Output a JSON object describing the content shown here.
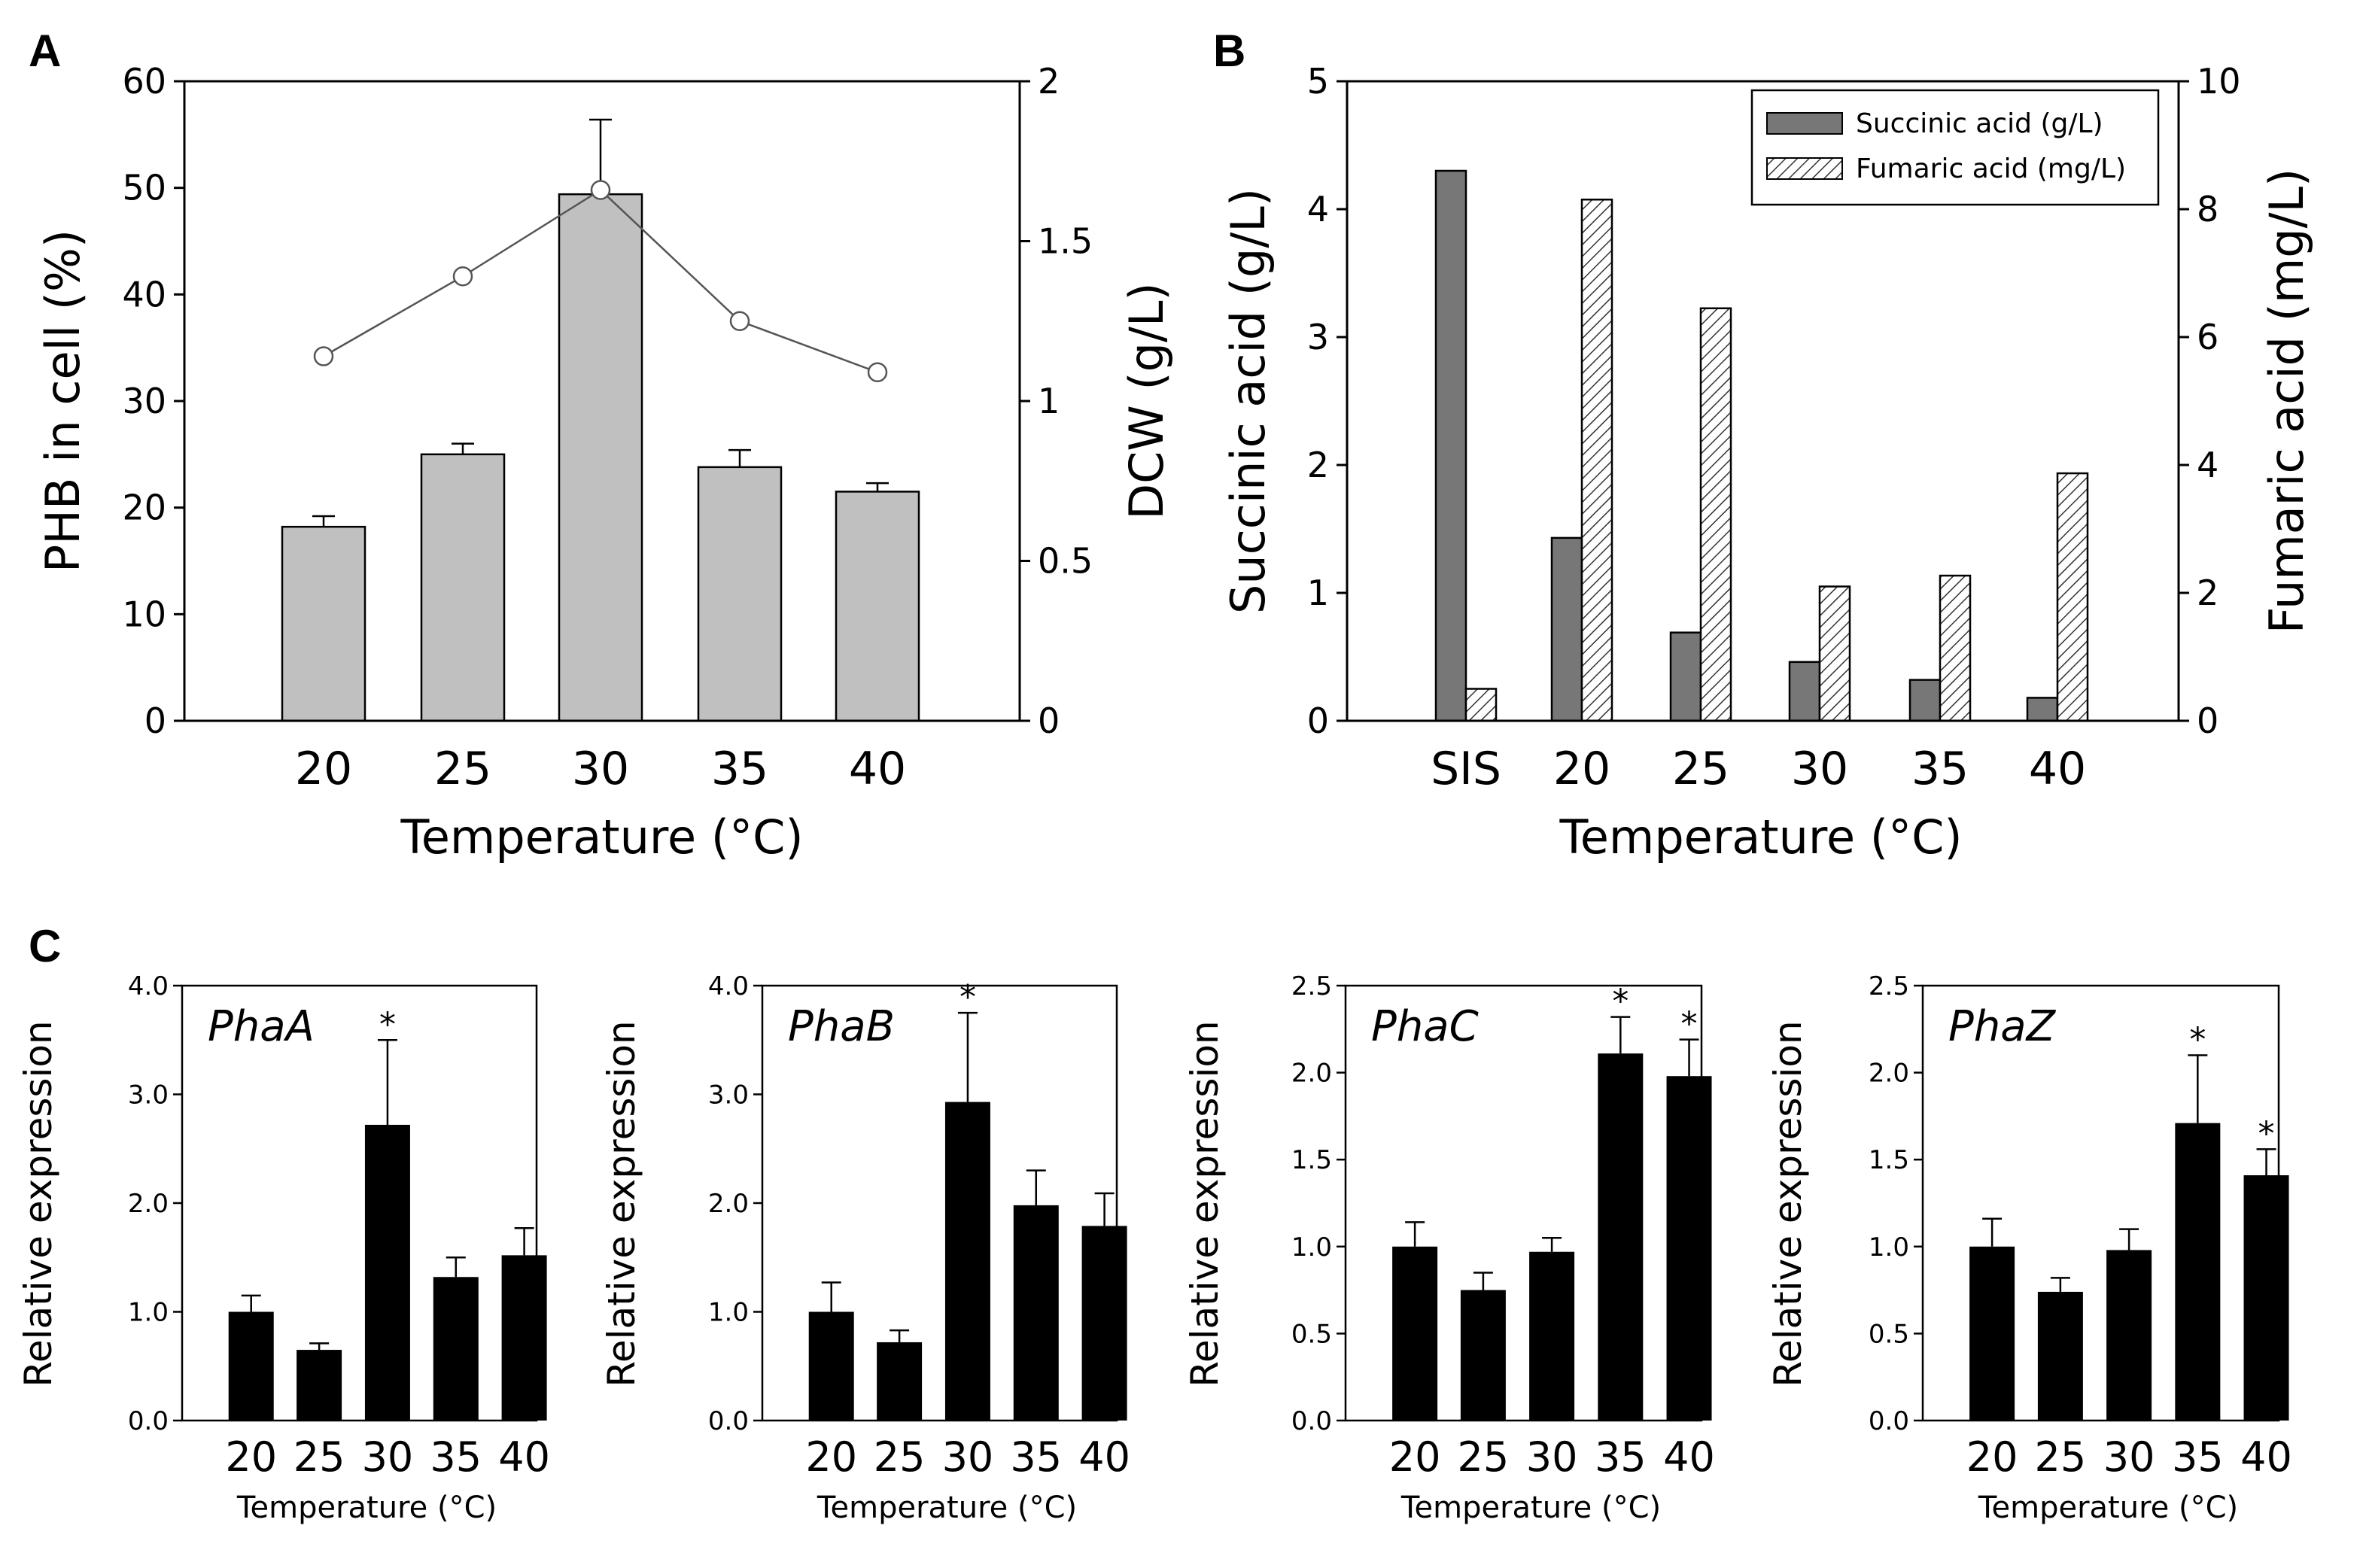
{
  "panels": {
    "A": "A",
    "B": "B",
    "C": "C"
  },
  "chart_data": [
    {
      "id": "A",
      "type": "bar",
      "xlabel": "Temperature (°C)",
      "ylabel": "PHB in cell (%)",
      "y2label": "DCW (g/L)",
      "ylim": [
        0,
        60
      ],
      "yticks": [
        "0",
        "10",
        "20",
        "30",
        "40",
        "50",
        "60"
      ],
      "y2lim": [
        0,
        2
      ],
      "y2ticks": [
        "0",
        "0.5",
        "1",
        "1.5",
        "2"
      ],
      "categories": [
        "20",
        "25",
        "30",
        "35",
        "40"
      ],
      "series": [
        {
          "name": "PHB in cell (%)",
          "kind": "bar",
          "color": "#c0c0c0",
          "values": [
            18.2,
            25.0,
            49.4,
            23.8,
            21.5
          ],
          "errors": [
            1.0,
            1.0,
            7.0,
            1.6,
            0.8
          ]
        },
        {
          "name": "DCW (g/L)",
          "kind": "line",
          "axis": "right",
          "values": [
            1.14,
            1.39,
            1.66,
            1.25,
            1.09
          ]
        }
      ]
    },
    {
      "id": "B",
      "type": "bar",
      "xlabel": "Temperature (°C)",
      "ylabel": "Succinic acid (g/L)",
      "y2label": "Fumaric acid (mg/L)",
      "ylim": [
        0,
        5
      ],
      "yticks": [
        "0",
        "1",
        "2",
        "3",
        "4",
        "5"
      ],
      "y2lim": [
        0,
        10
      ],
      "y2ticks": [
        "0",
        "2",
        "4",
        "6",
        "8",
        "10"
      ],
      "categories": [
        "SIS",
        "20",
        "25",
        "30",
        "35",
        "40"
      ],
      "legend": "top-right",
      "series": [
        {
          "name": "Succinic acid (g/L)",
          "kind": "bar",
          "color": "#777777",
          "values": [
            4.3,
            1.43,
            0.69,
            0.46,
            0.32,
            0.18
          ]
        },
        {
          "name": "Fumaric acid (mg/L)",
          "kind": "bar",
          "axis": "right",
          "pattern": "hatch",
          "values": [
            0.5,
            8.15,
            6.45,
            2.1,
            2.27,
            3.87
          ]
        }
      ]
    },
    {
      "id": "C1",
      "type": "bar",
      "label": "PhaA",
      "xlabel": "Temperature (°C)",
      "ylabel": "Relative expression",
      "ylim": [
        0,
        4
      ],
      "yticks": [
        "0.0",
        "1.0",
        "2.0",
        "3.0",
        "4.0"
      ],
      "categories": [
        "20",
        "25",
        "30",
        "35",
        "40"
      ],
      "values": [
        1.0,
        0.65,
        2.72,
        1.32,
        1.52
      ],
      "errors": [
        0.15,
        0.06,
        0.78,
        0.18,
        0.25
      ],
      "significance": [
        "",
        "",
        "*",
        "",
        ""
      ]
    },
    {
      "id": "C2",
      "type": "bar",
      "label": "PhaB",
      "xlabel": "Temperature (°C)",
      "ylabel": "Relative expression",
      "ylim": [
        0,
        4
      ],
      "yticks": [
        "0.0",
        "1.0",
        "2.0",
        "3.0",
        "4.0"
      ],
      "categories": [
        "20",
        "25",
        "30",
        "35",
        "40"
      ],
      "values": [
        1.0,
        0.72,
        2.93,
        1.98,
        1.79
      ],
      "errors": [
        0.27,
        0.11,
        0.82,
        0.32,
        0.3
      ],
      "significance": [
        "",
        "",
        "*",
        "",
        ""
      ]
    },
    {
      "id": "C3",
      "type": "bar",
      "label": "PhaC",
      "xlabel": "Temperature (°C)",
      "ylabel": "Relative expression",
      "ylim": [
        0,
        2.5
      ],
      "yticks": [
        "0.0",
        "0.5",
        "1.0",
        "1.5",
        "2.0",
        "2.5"
      ],
      "categories": [
        "20",
        "25",
        "30",
        "35",
        "40"
      ],
      "values": [
        1.0,
        0.75,
        0.97,
        2.11,
        1.98
      ],
      "errors": [
        0.14,
        0.1,
        0.08,
        0.21,
        0.21
      ],
      "significance": [
        "",
        "",
        "",
        "*",
        "*"
      ]
    },
    {
      "id": "C4",
      "type": "bar",
      "label": "PhaZ",
      "xlabel": "Temperature (°C)",
      "ylabel": "Relative expression",
      "ylim": [
        0,
        2.5
      ],
      "yticks": [
        "0.0",
        "0.5",
        "1.0",
        "1.5",
        "2.0",
        "2.5"
      ],
      "categories": [
        "20",
        "25",
        "30",
        "35",
        "40"
      ],
      "values": [
        1.0,
        0.74,
        0.98,
        1.71,
        1.41
      ],
      "errors": [
        0.16,
        0.08,
        0.12,
        0.39,
        0.15
      ],
      "significance": [
        "",
        "",
        "",
        "*",
        "*"
      ]
    }
  ]
}
